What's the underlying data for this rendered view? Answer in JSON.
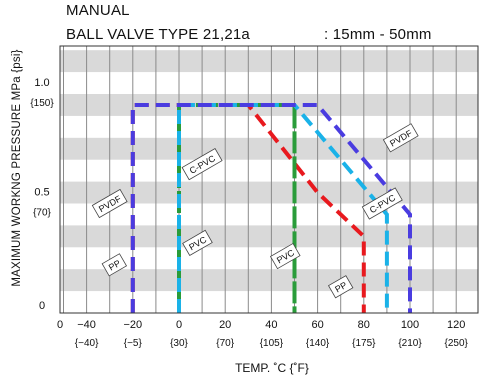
{
  "header": {
    "line1": "MANUAL",
    "line2": "BALL VALVE TYPE 21,21a",
    "size_range": ": 15mm - 50mm"
  },
  "chart_data": {
    "type": "line",
    "ylabel": "MAXIMUM WORKNG PRESSURE  MPa {psi}",
    "xlabel": "TEMP. ˚C {˚F}",
    "xlim": [
      -50,
      130
    ],
    "ylim": [
      0,
      1.15
    ],
    "x_ticks": [
      {
        "c": 0,
        "main": "0",
        "sub": ""
      },
      {
        "c": -40,
        "main": "−40",
        "sub": "{−40}"
      },
      {
        "c": -20,
        "main": "−20",
        "sub": "{−5}"
      },
      {
        "c": 0,
        "main": "0",
        "sub": "{30}"
      },
      {
        "c": 20,
        "main": "20",
        "sub": "{70}"
      },
      {
        "c": 40,
        "main": "40",
        "sub": "{105}"
      },
      {
        "c": 60,
        "main": "60",
        "sub": "{140}"
      },
      {
        "c": 80,
        "main": "80",
        "sub": "{175}"
      },
      {
        "c": 100,
        "main": "100",
        "sub": "{210}"
      },
      {
        "c": 120,
        "main": "120",
        "sub": "{250}"
      }
    ],
    "y_ticks": [
      {
        "v": 1.0,
        "main": "1.0",
        "sub": "{150}"
      },
      {
        "v": 0.5,
        "main": "0.5",
        "sub": "{70}"
      },
      {
        "v": 0,
        "main": "0",
        "sub": ""
      }
    ],
    "bands": [
      [
        0.1,
        0.2
      ],
      [
        0.3,
        0.4
      ],
      [
        0.5,
        0.6
      ],
      [
        0.7,
        0.8
      ],
      [
        0.9,
        1.0
      ],
      [
        1.1,
        1.2
      ]
    ],
    "series": [
      {
        "name": "PP",
        "color": "#e8191e",
        "x": [
          -20,
          -20,
          30,
          60,
          80,
          80
        ],
        "y": [
          0,
          0.95,
          0.95,
          0.55,
          0.35,
          0
        ]
      },
      {
        "name": "PVC",
        "color": "#2a9c3a",
        "x": [
          0,
          0,
          50,
          50
        ],
        "y": [
          0,
          0.95,
          0.95,
          0
        ]
      },
      {
        "name": "C-PVC",
        "color": "#1ab2e8",
        "x": [
          0,
          0,
          50,
          90,
          90
        ],
        "y": [
          0,
          0.95,
          0.95,
          0.45,
          0
        ]
      },
      {
        "name": "PVDF",
        "color": "#4a3ce0",
        "x": [
          -20,
          -20,
          60,
          100,
          100
        ],
        "y": [
          0,
          0.95,
          0.95,
          0.45,
          0
        ]
      }
    ],
    "labels": [
      {
        "text": "PP",
        "x": -28,
        "y": 0.22
      },
      {
        "text": "PVDF",
        "x": -30,
        "y": 0.5
      },
      {
        "text": "PVC",
        "x": 8,
        "y": 0.32
      },
      {
        "text": "C-PVC",
        "x": 10,
        "y": 0.68
      },
      {
        "text": "PVC",
        "x": 46,
        "y": 0.26
      },
      {
        "text": "PP",
        "x": 70,
        "y": 0.12
      },
      {
        "text": "C-PVC",
        "x": 88,
        "y": 0.5
      },
      {
        "text": "PVDF",
        "x": 96,
        "y": 0.8
      }
    ]
  }
}
